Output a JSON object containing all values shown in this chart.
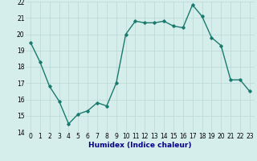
{
  "x": [
    0,
    1,
    2,
    3,
    4,
    5,
    6,
    7,
    8,
    9,
    10,
    11,
    12,
    13,
    14,
    15,
    16,
    17,
    18,
    19,
    20,
    21,
    22,
    23
  ],
  "y": [
    19.5,
    18.3,
    16.8,
    15.9,
    14.5,
    15.1,
    15.3,
    15.8,
    15.6,
    17.0,
    20.0,
    20.8,
    20.7,
    20.7,
    20.8,
    20.5,
    20.4,
    21.8,
    21.1,
    19.8,
    19.3,
    17.2,
    17.2,
    16.5
  ],
  "xlabel": "Humidex (Indice chaleur)",
  "ylim": [
    14,
    22
  ],
  "yticks": [
    14,
    15,
    16,
    17,
    18,
    19,
    20,
    21,
    22
  ],
  "xticks": [
    0,
    1,
    2,
    3,
    4,
    5,
    6,
    7,
    8,
    9,
    10,
    11,
    12,
    13,
    14,
    15,
    16,
    17,
    18,
    19,
    20,
    21,
    22,
    23
  ],
  "line_color": "#1a7a6e",
  "marker": "D",
  "marker_size": 1.8,
  "line_width": 1.0,
  "bg_color": "#d6eeeb",
  "grid_color": "#b8d8d4",
  "tick_label_fontsize": 5.5,
  "xlabel_fontsize": 6.5,
  "xlabel_color": "#00008b"
}
